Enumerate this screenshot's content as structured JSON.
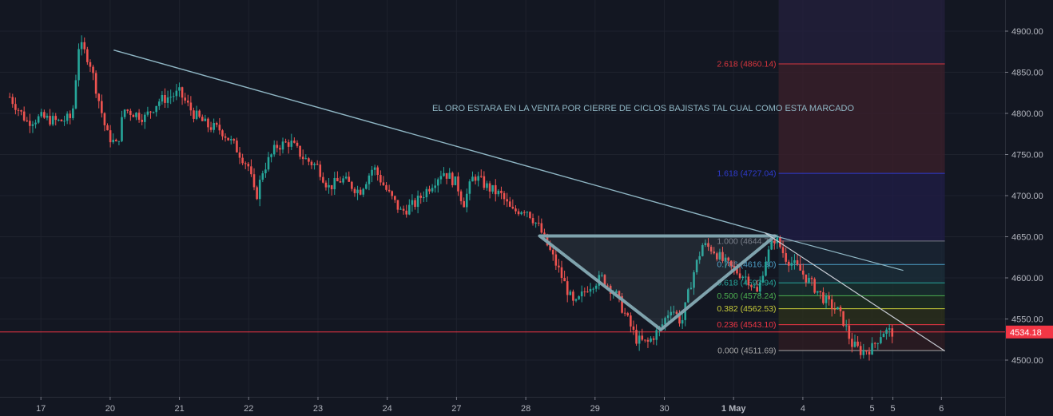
{
  "chart_data": {
    "type": "candlestick",
    "annotation": "EL ORO ESTARA EN LA VENTA POR CIERRE DE CICLOS BAJISTAS TAL CUAL COMO ESTA MARCADO",
    "current_price": {
      "value": 4534.18,
      "label": "4534.18",
      "color": "#f23645"
    },
    "y_axis": {
      "range": [
        4455,
        4960
      ],
      "ticks": [
        {
          "value": 4500,
          "label": "4500.00"
        },
        {
          "value": 4550,
          "label": "4550.00"
        },
        {
          "value": 4600,
          "label": "4600.00"
        },
        {
          "value": 4650,
          "label": "4650.00"
        },
        {
          "value": 4700,
          "label": "4700.00"
        },
        {
          "value": 4750,
          "label": "4750.00"
        },
        {
          "value": 4800,
          "label": "4800.00"
        },
        {
          "value": 4850,
          "label": "4850.00"
        },
        {
          "value": 4900,
          "label": "4900.00"
        }
      ]
    },
    "x_axis": {
      "ticks": [
        {
          "t": -4.0,
          "label": "17"
        },
        {
          "t": -3.0,
          "label": "20"
        },
        {
          "t": -2.0,
          "label": "21"
        },
        {
          "t": -1.0,
          "label": "22"
        },
        {
          "t": 0.0,
          "label": "23"
        },
        {
          "t": 1.0,
          "label": "24"
        },
        {
          "t": 2.0,
          "label": "27"
        },
        {
          "t": 3.0,
          "label": "28"
        },
        {
          "t": 4.0,
          "label": "29"
        },
        {
          "t": 5.0,
          "label": "30"
        },
        {
          "t": 6.0,
          "label": "1 May"
        },
        {
          "t": 7.0,
          "label": "4"
        },
        {
          "t": 8.0,
          "label": "5"
        },
        {
          "t": 8.3,
          "label": "5"
        },
        {
          "t": 9.0,
          "label": "6"
        }
      ]
    },
    "series": [
      {
        "t": -4.45,
        "price": 4820
      },
      {
        "t": -4.2,
        "price": 4790
      },
      {
        "t": -4.0,
        "price": 4795
      },
      {
        "t": -3.75,
        "price": 4790
      },
      {
        "t": -3.55,
        "price": 4795
      },
      {
        "t": -3.45,
        "price": 4885
      },
      {
        "t": -3.3,
        "price": 4865
      },
      {
        "t": -3.05,
        "price": 4775
      },
      {
        "t": -2.9,
        "price": 4760
      },
      {
        "t": -2.8,
        "price": 4805
      },
      {
        "t": -2.5,
        "price": 4795
      },
      {
        "t": -2.3,
        "price": 4815
      },
      {
        "t": -2.0,
        "price": 4825
      },
      {
        "t": -1.8,
        "price": 4800
      },
      {
        "t": -1.6,
        "price": 4785
      },
      {
        "t": -1.4,
        "price": 4780
      },
      {
        "t": -1.2,
        "price": 4760
      },
      {
        "t": -1.0,
        "price": 4735
      },
      {
        "t": -0.9,
        "price": 4695
      },
      {
        "t": -0.8,
        "price": 4730
      },
      {
        "t": -0.6,
        "price": 4760
      },
      {
        "t": -0.4,
        "price": 4765
      },
      {
        "t": -0.2,
        "price": 4745
      },
      {
        "t": 0.0,
        "price": 4735
      },
      {
        "t": 0.15,
        "price": 4710
      },
      {
        "t": 0.35,
        "price": 4720
      },
      {
        "t": 0.6,
        "price": 4705
      },
      {
        "t": 0.8,
        "price": 4735
      },
      {
        "t": 1.0,
        "price": 4705
      },
      {
        "t": 1.2,
        "price": 4680
      },
      {
        "t": 1.4,
        "price": 4690
      },
      {
        "t": 1.6,
        "price": 4710
      },
      {
        "t": 1.8,
        "price": 4730
      },
      {
        "t": 2.0,
        "price": 4715
      },
      {
        "t": 2.1,
        "price": 4690
      },
      {
        "t": 2.25,
        "price": 4725
      },
      {
        "t": 2.45,
        "price": 4710
      },
      {
        "t": 2.65,
        "price": 4700
      },
      {
        "t": 2.8,
        "price": 4680
      },
      {
        "t": 3.0,
        "price": 4685
      },
      {
        "t": 3.2,
        "price": 4660
      },
      {
        "t": 3.5,
        "price": 4605
      },
      {
        "t": 3.7,
        "price": 4565
      },
      {
        "t": 3.9,
        "price": 4590
      },
      {
        "t": 4.1,
        "price": 4600
      },
      {
        "t": 4.3,
        "price": 4580
      },
      {
        "t": 4.6,
        "price": 4525
      },
      {
        "t": 4.75,
        "price": 4520
      },
      {
        "t": 4.95,
        "price": 4540
      },
      {
        "t": 5.1,
        "price": 4565
      },
      {
        "t": 5.25,
        "price": 4545
      },
      {
        "t": 5.4,
        "price": 4600
      },
      {
        "t": 5.55,
        "price": 4640
      },
      {
        "t": 5.7,
        "price": 4635
      },
      {
        "t": 5.85,
        "price": 4620
      },
      {
        "t": 6.0,
        "price": 4610
      },
      {
        "t": 6.2,
        "price": 4600
      },
      {
        "t": 6.35,
        "price": 4580
      },
      {
        "t": 6.45,
        "price": 4620
      },
      {
        "t": 6.6,
        "price": 4650
      },
      {
        "t": 6.75,
        "price": 4625
      },
      {
        "t": 6.95,
        "price": 4610
      },
      {
        "t": 7.15,
        "price": 4590
      },
      {
        "t": 7.35,
        "price": 4570
      },
      {
        "t": 7.5,
        "price": 4560
      },
      {
        "t": 7.6,
        "price": 4545
      },
      {
        "t": 7.7,
        "price": 4520
      },
      {
        "t": 7.85,
        "price": 4510
      },
      {
        "t": 8.0,
        "price": 4515
      },
      {
        "t": 8.15,
        "price": 4535
      },
      {
        "t": 8.3,
        "price": 4534
      }
    ],
    "trendlines": [
      {
        "from": {
          "t": -2.95,
          "price": 4877
        },
        "to": {
          "t": 6.65,
          "price": 4650
        }
      },
      {
        "from": {
          "t": 6.55,
          "price": 4652
        },
        "to": {
          "t": 8.45,
          "price": 4609
        }
      },
      {
        "from": {
          "t": 6.45,
          "price": 4655
        },
        "to": {
          "t": 9.05,
          "price": 4511
        }
      }
    ],
    "triangle": {
      "vertices": [
        {
          "t": 3.2,
          "price": 4651
        },
        {
          "t": 6.6,
          "price": 4651
        },
        {
          "t": 4.95,
          "price": 4537
        }
      ]
    },
    "fibonacci": {
      "levels": [
        {
          "ratio": "2.618",
          "price": 4860.14,
          "label": "2.618 (4860.14)",
          "color": "#d9363e"
        },
        {
          "ratio": "1.618",
          "price": 4727.04,
          "label": "1.618 (4727.04)",
          "color": "#2f3bd0"
        },
        {
          "ratio": "1.000",
          "price": 4644.79,
          "label": "1.000 (4644.79)",
          "color": "#787b86"
        },
        {
          "ratio": "0.786",
          "price": 4616.3,
          "label": "0.786 (4616.30)",
          "color": "#4da1c9"
        },
        {
          "ratio": "0.618",
          "price": 4593.94,
          "label": "0.618 (4593.94)",
          "color": "#26a69a"
        },
        {
          "ratio": "0.500",
          "price": 4578.24,
          "label": "0.500 (4578.24)",
          "color": "#4caf50"
        },
        {
          "ratio": "0.382",
          "price": 4562.53,
          "label": "0.382 (4562.53)",
          "color": "#c9cd3a"
        },
        {
          "ratio": "0.236",
          "price": 4543.1,
          "label": "0.236 (4543.10)",
          "color": "#f23645"
        },
        {
          "ratio": "0.000",
          "price": 4511.69,
          "label": "0.000 (4511.69)",
          "color": "#a6a6a6"
        }
      ]
    },
    "colors": {
      "up": "#26a69a",
      "down": "#ef5350",
      "background": "#131722",
      "grid": "#1e222d"
    }
  }
}
